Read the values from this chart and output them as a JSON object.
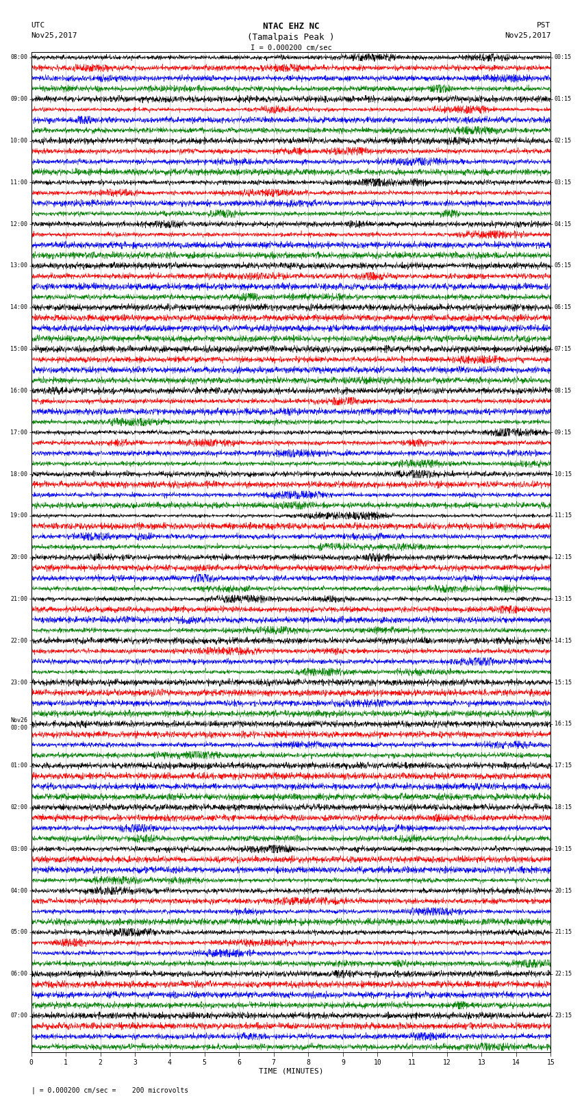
{
  "title_line1": "NTAC EHZ NC",
  "title_line2": "(Tamalpais Peak )",
  "title_scale": "I = 0.000200 cm/sec",
  "xlabel": "TIME (MINUTES)",
  "footnote": "| = 0.000200 cm/sec =    200 microvolts",
  "utc_hour_labels": [
    "08:00",
    "09:00",
    "10:00",
    "11:00",
    "12:00",
    "13:00",
    "14:00",
    "15:00",
    "16:00",
    "17:00",
    "18:00",
    "19:00",
    "20:00",
    "21:00",
    "22:00",
    "23:00",
    "Nov26\n00:00",
    "01:00",
    "02:00",
    "03:00",
    "04:00",
    "05:00",
    "06:00",
    "07:00"
  ],
  "pst_hour_labels": [
    "00:15",
    "01:15",
    "02:15",
    "03:15",
    "04:15",
    "05:15",
    "06:15",
    "07:15",
    "08:15",
    "09:15",
    "10:15",
    "11:15",
    "12:15",
    "13:15",
    "14:15",
    "15:15",
    "16:15",
    "17:15",
    "18:15",
    "19:15",
    "20:15",
    "21:15",
    "22:15",
    "23:15"
  ],
  "trace_colors": [
    "black",
    "red",
    "blue",
    "green"
  ],
  "num_hours": 24,
  "traces_per_hour": 4,
  "minutes": 15,
  "samples_per_row": 2700,
  "noise_scale": 0.06,
  "amplitude_scale": 0.38,
  "background_color": "white",
  "grid_color": "#aaaaaa",
  "trace_linewidth": 0.35,
  "x_ticks": [
    0,
    1,
    2,
    3,
    4,
    5,
    6,
    7,
    8,
    9,
    10,
    11,
    12,
    13,
    14,
    15
  ],
  "left_header_line1": "UTC",
  "left_header_line2": "Nov25,2017",
  "right_header_line1": "PST",
  "right_header_line2": "Nov25,2017"
}
